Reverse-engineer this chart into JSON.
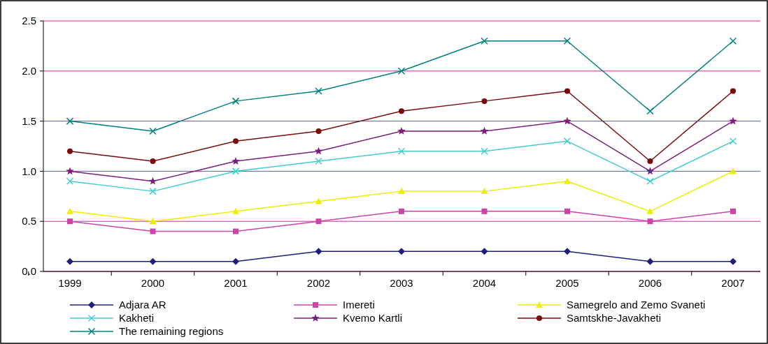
{
  "chart_data": {
    "type": "line",
    "categories": [
      "1999",
      "2000",
      "2001",
      "2002",
      "2003",
      "2004",
      "2005",
      "2006",
      "2007"
    ],
    "ylim": [
      0,
      2.5
    ],
    "yticks": [
      {
        "value": 0,
        "label": "0.0"
      },
      0.5,
      {
        "value": 1,
        "label": "1.0"
      },
      1.5,
      {
        "value": 2,
        "label": "2.0"
      },
      2.5
    ],
    "grid": "y",
    "legend": "bottom",
    "line_style": "solid",
    "series": [
      {
        "name": "Adjara AR",
        "color": "#1f1f7a",
        "marker": "diamond",
        "values": [
          0.1,
          0.1,
          0.1,
          0.2,
          0.2,
          0.2,
          0.2,
          0.1,
          0.1
        ]
      },
      {
        "name": "Imereti",
        "color": "#cc44aa",
        "marker": "square",
        "values": [
          0.5,
          0.4,
          0.4,
          0.5,
          0.6,
          0.6,
          0.6,
          0.5,
          0.6
        ]
      },
      {
        "name": "Samegrelo and Zemo Svaneti",
        "color": "#eeee00",
        "marker": "triangle",
        "values": [
          0.6,
          0.5,
          0.6,
          0.7,
          0.8,
          0.8,
          0.9,
          0.6,
          1.0
        ]
      },
      {
        "name": "Kakheti",
        "color": "#44cccc",
        "marker": "cross",
        "values": [
          0.9,
          0.8,
          1.0,
          1.1,
          1.2,
          1.2,
          1.3,
          0.9,
          1.3
        ]
      },
      {
        "name": "Kvemo Kartli",
        "color": "#7a1f7a",
        "marker": "star",
        "values": [
          1.0,
          0.9,
          1.1,
          1.2,
          1.4,
          1.4,
          1.5,
          1.0,
          1.5
        ]
      },
      {
        "name": "Samtskhe-Javakheti",
        "color": "#7a0a0a",
        "marker": "circle",
        "values": [
          1.2,
          1.1,
          1.3,
          1.4,
          1.6,
          1.7,
          1.8,
          1.1,
          1.8
        ]
      },
      {
        "name": "The remaining regions",
        "color": "#007f7f",
        "marker": "cross",
        "values": [
          1.5,
          1.4,
          1.7,
          1.8,
          2.0,
          2.3,
          2.3,
          1.6,
          2.3
        ]
      }
    ]
  }
}
